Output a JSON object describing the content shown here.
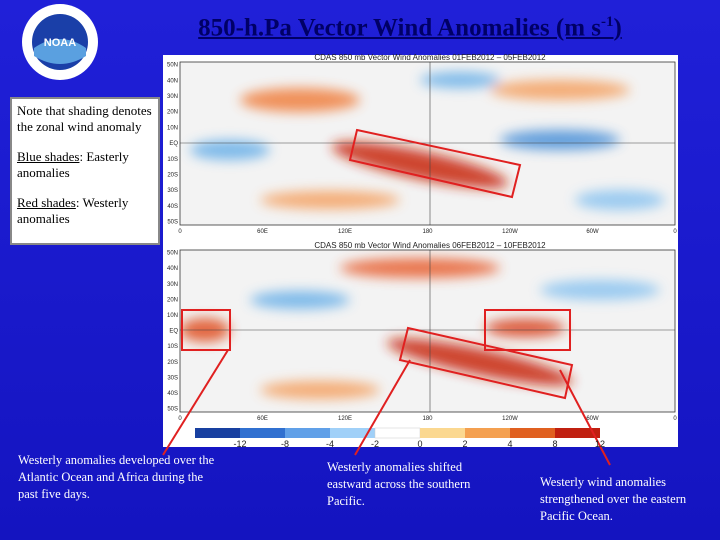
{
  "logo": {
    "label": "NOAA"
  },
  "title": {
    "text": "850-h.Pa Vector Wind Anomalies  (m s",
    "superscript": "-1",
    "suffix": ")"
  },
  "note": {
    "intro": "Note that shading denotes the zonal wind anomaly",
    "items": [
      {
        "label": "Blue shades",
        "text": ": Easterly anomalies"
      },
      {
        "label": "Red shades",
        "text": ": Westerly anomalies"
      }
    ]
  },
  "maps": [
    {
      "title": "CDAS 850 mb Vector Wind Anomalies   01FEB2012 – 05FEB2012"
    },
    {
      "title": "CDAS 850 mb Vector Wind Anomalies   06FEB2012 – 10FEB2012"
    }
  ],
  "latitudes": [
    "50N",
    "40N",
    "30N",
    "20N",
    "10N",
    "EQ",
    "10S",
    "20S",
    "30S",
    "40S",
    "50S"
  ],
  "longitudes": [
    "0",
    "60E",
    "120E",
    "180",
    "120W",
    "60W",
    "0"
  ],
  "colorbar": [
    "-12",
    "-8",
    "-4",
    "-2",
    "0",
    "2",
    "4",
    "8",
    "12"
  ],
  "captions": [
    "Westerly anomalies developed over the Atlantic Ocean and Africa during the past five days.",
    "Westerly anomalies shifted eastward across the southern Pacific.",
    "Westerly wind anomalies strengthened over the eastern Pacific Ocean."
  ]
}
